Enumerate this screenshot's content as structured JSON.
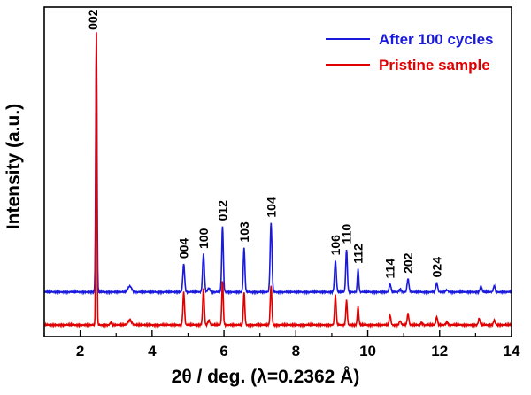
{
  "chart_data": {
    "type": "line",
    "title": "",
    "xlabel": "2θ / deg. (λ=0.2362 Å)",
    "ylabel": "Intensity (a.u.)",
    "xlim": [
      1,
      14
    ],
    "xticks": [
      2,
      4,
      6,
      8,
      10,
      12,
      14
    ],
    "yticks_shown": false,
    "legend_position": "top-right",
    "series": [
      {
        "name": "After 100 cycles",
        "color": "#1a1adc",
        "baseline": 0.135,
        "peaks": [
          {
            "x": 2.45,
            "h": 0.79,
            "w": 0.018
          },
          {
            "x": 3.38,
            "h": 0.018,
            "w": 0.05
          },
          {
            "x": 4.88,
            "h": 0.085,
            "w": 0.025
          },
          {
            "x": 5.43,
            "h": 0.115,
            "w": 0.025
          },
          {
            "x": 5.58,
            "h": 0.012,
            "w": 0.03
          },
          {
            "x": 5.96,
            "h": 0.2,
            "w": 0.022
          },
          {
            "x": 6.56,
            "h": 0.135,
            "w": 0.022
          },
          {
            "x": 7.31,
            "h": 0.21,
            "w": 0.025
          },
          {
            "x": 9.1,
            "h": 0.095,
            "w": 0.025
          },
          {
            "x": 9.41,
            "h": 0.13,
            "w": 0.022
          },
          {
            "x": 9.73,
            "h": 0.07,
            "w": 0.02
          },
          {
            "x": 10.62,
            "h": 0.025,
            "w": 0.025
          },
          {
            "x": 10.9,
            "h": 0.008,
            "w": 0.03
          },
          {
            "x": 11.12,
            "h": 0.04,
            "w": 0.025
          },
          {
            "x": 11.92,
            "h": 0.028,
            "w": 0.025
          },
          {
            "x": 12.2,
            "h": 0.006,
            "w": 0.03
          },
          {
            "x": 13.15,
            "h": 0.018,
            "w": 0.025
          },
          {
            "x": 13.52,
            "h": 0.018,
            "w": 0.025
          }
        ]
      },
      {
        "name": "Pristine sample",
        "color": "#e00000",
        "baseline": 0.035,
        "peaks": [
          {
            "x": 2.45,
            "h": 0.89,
            "w": 0.015
          },
          {
            "x": 2.85,
            "h": 0.008,
            "w": 0.02
          },
          {
            "x": 3.38,
            "h": 0.015,
            "w": 0.05
          },
          {
            "x": 4.88,
            "h": 0.1,
            "w": 0.022
          },
          {
            "x": 5.43,
            "h": 0.11,
            "w": 0.022
          },
          {
            "x": 5.58,
            "h": 0.015,
            "w": 0.025
          },
          {
            "x": 5.96,
            "h": 0.135,
            "w": 0.02
          },
          {
            "x": 6.56,
            "h": 0.1,
            "w": 0.02
          },
          {
            "x": 7.31,
            "h": 0.12,
            "w": 0.022
          },
          {
            "x": 9.1,
            "h": 0.09,
            "w": 0.022
          },
          {
            "x": 9.41,
            "h": 0.075,
            "w": 0.02
          },
          {
            "x": 9.73,
            "h": 0.055,
            "w": 0.02
          },
          {
            "x": 10.62,
            "h": 0.03,
            "w": 0.022
          },
          {
            "x": 10.9,
            "h": 0.012,
            "w": 0.025
          },
          {
            "x": 11.12,
            "h": 0.035,
            "w": 0.022
          },
          {
            "x": 11.5,
            "h": 0.006,
            "w": 0.03
          },
          {
            "x": 11.92,
            "h": 0.025,
            "w": 0.022
          },
          {
            "x": 12.2,
            "h": 0.008,
            "w": 0.03
          },
          {
            "x": 13.1,
            "h": 0.02,
            "w": 0.022
          },
          {
            "x": 13.52,
            "h": 0.015,
            "w": 0.022
          }
        ]
      }
    ],
    "annotations": [
      {
        "text": "002",
        "x": 2.35
      },
      {
        "text": "004",
        "x": 4.88
      },
      {
        "text": "100",
        "x": 5.43
      },
      {
        "text": "012",
        "x": 5.96
      },
      {
        "text": "103",
        "x": 6.56
      },
      {
        "text": "104",
        "x": 7.31
      },
      {
        "text": "106",
        "x": 9.1
      },
      {
        "text": "110",
        "x": 9.41
      },
      {
        "text": "112",
        "x": 9.73
      },
      {
        "text": "114",
        "x": 10.62
      },
      {
        "text": "202",
        "x": 11.12
      },
      {
        "text": "024",
        "x": 11.92
      }
    ]
  }
}
